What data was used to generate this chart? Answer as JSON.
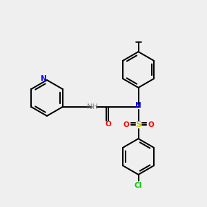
{
  "bg_color": "#efefef",
  "figsize": [
    3.0,
    3.0
  ],
  "dpi": 100,
  "colors": {
    "bond": "#000000",
    "N": "#0000ff",
    "O": "#ff0000",
    "S": "#cccc00",
    "Cl": "#00cc00",
    "H_label": "#708090",
    "C": "#000000"
  },
  "bond_width": 1.5,
  "font_size": 7.5
}
